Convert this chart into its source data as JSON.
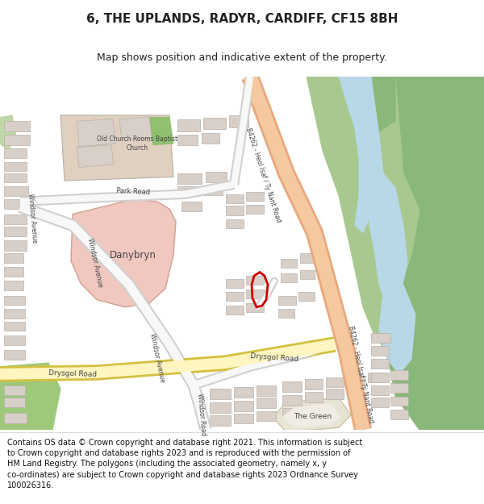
{
  "title": "6, THE UPLANDS, RADYR, CARDIFF, CF15 8BH",
  "subtitle": "Map shows position and indicative extent of the property.",
  "footer": "Contains OS data © Crown copyright and database right 2021. This information is subject\nto Crown copyright and database rights 2023 and is reproduced with the permission of\nHM Land Registry. The polygons (including the associated geometry, namely x, y\nco-ordinates) are subject to Crown copyright and database rights 2023 Ordnance Survey\n100026316.",
  "map_bg": "#f0ece3",
  "road_main_color": "#f5c9a0",
  "road_main_border": "#e8a87c",
  "road_yellow_color": "#fef5c0",
  "road_yellow_border": "#d4c040",
  "green_dark": "#8ab87a",
  "green_mid": "#a8c890",
  "green_park": "#9ec87a",
  "water_color": "#b8d8e8",
  "building_color": "#d8d0c8",
  "building_border": "#b8b0a8",
  "danybryn_color": "#f0c8c0",
  "church_color": "#e0d0c0",
  "plot_color": "#cc0000",
  "white_bg": "#ffffff",
  "title_fontsize": 11,
  "subtitle_fontsize": 9,
  "footer_fontsize": 7
}
